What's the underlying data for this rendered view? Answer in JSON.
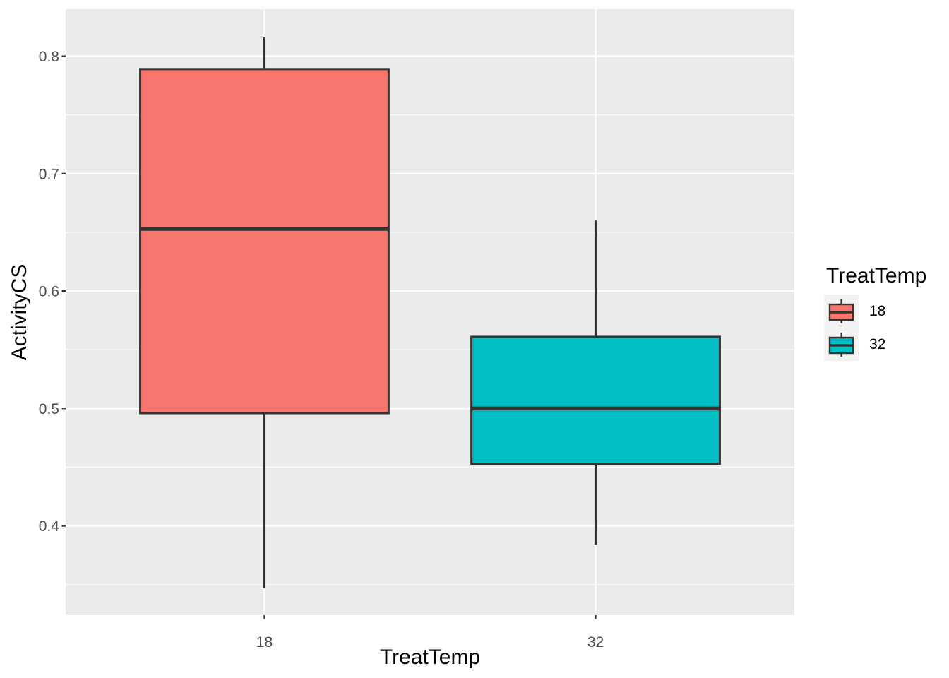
{
  "chart_data": {
    "type": "boxplot",
    "title": "",
    "xlabel": "TreatTemp",
    "ylabel": "ActivityCS",
    "categories": [
      "18",
      "32"
    ],
    "series": [
      {
        "name": "18",
        "color": "#F8766D",
        "stats": {
          "whisker_min": 0.347,
          "q1": 0.496,
          "median": 0.653,
          "q3": 0.789,
          "whisker_max": 0.816
        }
      },
      {
        "name": "32",
        "color": "#00BFC4",
        "stats": {
          "whisker_min": 0.384,
          "q1": 0.453,
          "median": 0.5,
          "q3": 0.561,
          "whisker_max": 0.66
        }
      }
    ],
    "y_axis": {
      "ticks": [
        {
          "value": 0.8,
          "label": "0.8"
        },
        {
          "value": 0.7,
          "label": "0.7"
        },
        {
          "value": 0.6,
          "label": "0.6"
        },
        {
          "value": 0.5,
          "label": "0.5"
        },
        {
          "value": 0.4,
          "label": "0.4"
        }
      ],
      "minor_ticks": [
        0.75,
        0.65,
        0.55,
        0.45,
        0.35
      ],
      "ylim": [
        0.324,
        0.84
      ]
    },
    "x_axis": {
      "tick_labels": [
        "18",
        "32"
      ]
    },
    "legend": {
      "title": "TreatTemp",
      "position": "right",
      "entries": [
        {
          "label": "18",
          "color": "#F8766D"
        },
        {
          "label": "32",
          "color": "#00BFC4"
        }
      ]
    },
    "style": {
      "panel_bg": "#EBEBEB",
      "grid_color": "#FFFFFF",
      "outline_color": "#333333",
      "tick_label_color": "#4D4D4D",
      "legend_key_bg": "#F2F2F2"
    },
    "grid": "on"
  }
}
